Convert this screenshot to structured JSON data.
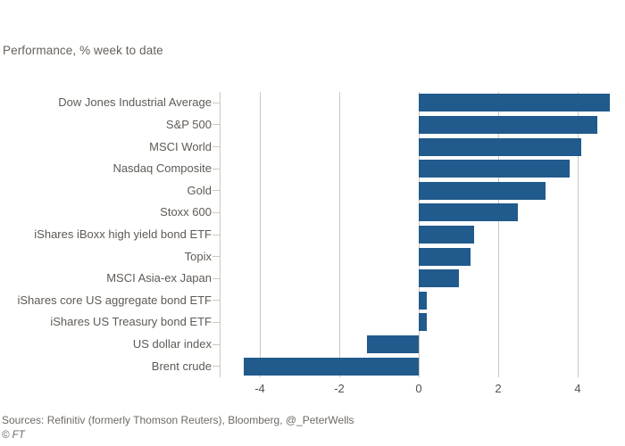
{
  "title": "Performance, % week to date",
  "source_line": "Sources: Refinitiv (formerly Thomson Reuters), Bloomberg, @_PeterWells",
  "copyright": "© FT",
  "colors": {
    "bar": "#215a8c",
    "gridline": "#cfc7bc",
    "category_text": "#5f5a55",
    "tick_text": "#55504b",
    "source_text": "#6e6a65",
    "background": "#ffffff"
  },
  "chart_data": {
    "type": "bar",
    "orientation": "horizontal",
    "title": "Performance, % week to date",
    "categories": [
      "Dow Jones Industrial Average",
      "S&P 500",
      "MSCI World",
      "Nasdaq Composite",
      "Gold",
      "Stoxx 600",
      "iShares iBoxx high yield bond ETF",
      "Topix",
      "MSCI Asia-ex Japan",
      "iShares core US aggregate bond ETF",
      "iShares US Treasury bond ETF",
      "US dollar index",
      "Brent crude"
    ],
    "values": [
      4.8,
      4.5,
      4.1,
      3.8,
      3.2,
      2.5,
      1.4,
      1.3,
      1.0,
      0.2,
      0.2,
      -1.3,
      -4.4
    ],
    "xlabel": "",
    "ylabel": "",
    "xlim": [
      -5,
      5
    ],
    "x_tick_values": [
      -4,
      -2,
      0,
      2,
      4
    ],
    "x_tick_labels": [
      "-4",
      "-2",
      "0",
      "2",
      "4"
    ],
    "grid": true,
    "bar_color": "#215a8c"
  }
}
